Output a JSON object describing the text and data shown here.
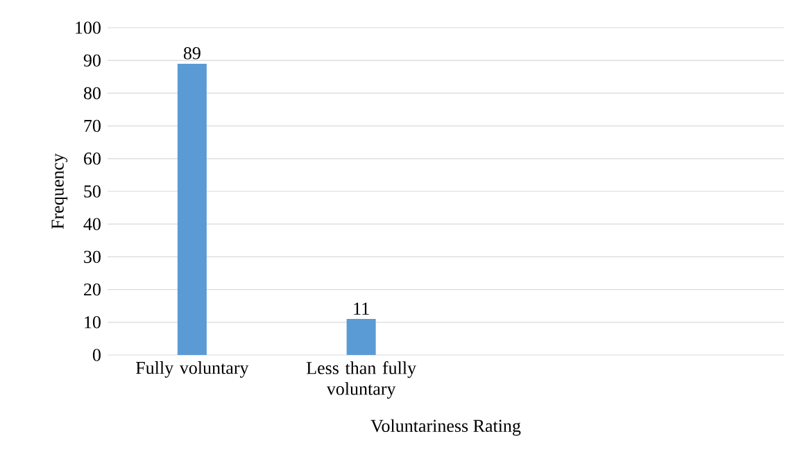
{
  "chart_data": {
    "type": "bar",
    "xlabel": "Voluntariness Rating",
    "ylabel": "Frequency",
    "categories": [
      "Fully voluntary",
      "Less than fully voluntary",
      null,
      null
    ],
    "values": [
      89,
      11,
      null,
      null
    ],
    "color": "#5b9bd5",
    "ylim": [
      0,
      100
    ],
    "yticks": [
      0,
      10,
      20,
      30,
      40,
      50,
      60,
      70,
      80,
      90,
      100
    ],
    "grid": "y",
    "data_labels": true
  }
}
